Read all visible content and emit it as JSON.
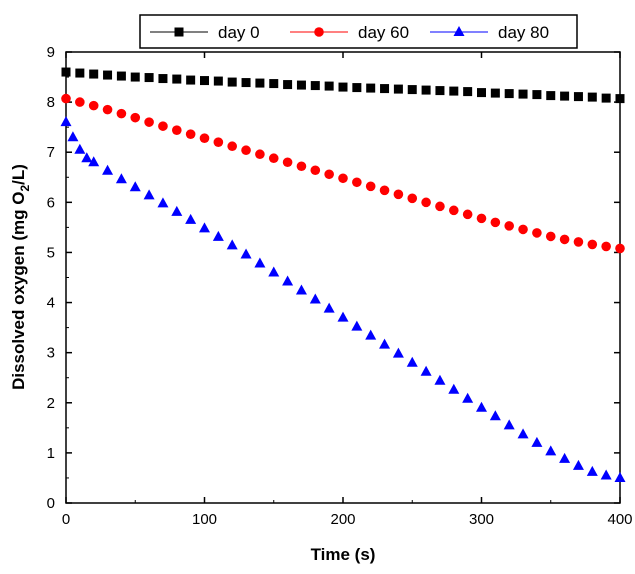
{
  "chart_data": {
    "type": "scatter",
    "xlabel": "Time (s)",
    "ylabel_prefix": "Dissolved oxygen (mg O",
    "ylabel_sub": "2",
    "ylabel_suffix": "/L)",
    "xlim": [
      0,
      400
    ],
    "ylim": [
      0,
      9
    ],
    "xticks": [
      0,
      100,
      200,
      300,
      400
    ],
    "yticks": [
      0,
      1,
      2,
      3,
      4,
      5,
      6,
      7,
      8,
      9
    ],
    "grid": false,
    "legend_position": "top",
    "series": [
      {
        "name": "day 0",
        "marker": "square",
        "color": "#000000",
        "x": [
          0,
          10,
          20,
          30,
          40,
          50,
          60,
          70,
          80,
          90,
          100,
          110,
          120,
          130,
          140,
          150,
          160,
          170,
          180,
          190,
          200,
          210,
          220,
          230,
          240,
          250,
          260,
          270,
          280,
          290,
          300,
          310,
          320,
          330,
          340,
          350,
          360,
          370,
          380,
          390,
          400
        ],
        "y": [
          8.6,
          8.58,
          8.56,
          8.54,
          8.52,
          8.5,
          8.49,
          8.47,
          8.46,
          8.44,
          8.43,
          8.42,
          8.4,
          8.39,
          8.38,
          8.37,
          8.35,
          8.34,
          8.33,
          8.32,
          8.3,
          8.29,
          8.28,
          8.27,
          8.26,
          8.25,
          8.24,
          8.23,
          8.22,
          8.21,
          8.19,
          8.18,
          8.17,
          8.16,
          8.15,
          8.13,
          8.12,
          8.11,
          8.1,
          8.08,
          8.07
        ]
      },
      {
        "name": "day 60",
        "marker": "circle",
        "color": "#ff0000",
        "x": [
          0,
          10,
          20,
          30,
          40,
          50,
          60,
          70,
          80,
          90,
          100,
          110,
          120,
          130,
          140,
          150,
          160,
          170,
          180,
          190,
          200,
          210,
          220,
          230,
          240,
          250,
          260,
          270,
          280,
          290,
          300,
          310,
          320,
          330,
          340,
          350,
          360,
          370,
          380,
          390,
          400
        ],
        "y": [
          8.07,
          8.0,
          7.93,
          7.85,
          7.77,
          7.69,
          7.6,
          7.52,
          7.44,
          7.36,
          7.28,
          7.2,
          7.12,
          7.04,
          6.96,
          6.88,
          6.8,
          6.72,
          6.64,
          6.56,
          6.48,
          6.4,
          6.32,
          6.24,
          6.16,
          6.08,
          6.0,
          5.92,
          5.84,
          5.76,
          5.68,
          5.6,
          5.53,
          5.46,
          5.39,
          5.32,
          5.26,
          5.21,
          5.16,
          5.12,
          5.08
        ]
      },
      {
        "name": "day 80",
        "marker": "triangle",
        "color": "#0000ff",
        "x": [
          0,
          5,
          10,
          15,
          20,
          30,
          40,
          50,
          60,
          70,
          80,
          90,
          100,
          110,
          120,
          130,
          140,
          150,
          160,
          170,
          180,
          190,
          200,
          210,
          220,
          230,
          240,
          250,
          260,
          270,
          280,
          290,
          300,
          310,
          320,
          330,
          340,
          350,
          360,
          370,
          380,
          390,
          400
        ],
        "y": [
          7.6,
          7.3,
          7.05,
          6.88,
          6.8,
          6.63,
          6.46,
          6.3,
          6.14,
          5.98,
          5.81,
          5.65,
          5.48,
          5.31,
          5.14,
          4.96,
          4.78,
          4.6,
          4.42,
          4.24,
          4.06,
          3.88,
          3.7,
          3.52,
          3.34,
          3.16,
          2.98,
          2.8,
          2.62,
          2.44,
          2.26,
          2.08,
          1.9,
          1.73,
          1.55,
          1.37,
          1.2,
          1.03,
          0.88,
          0.74,
          0.62,
          0.55,
          0.5
        ]
      }
    ]
  }
}
